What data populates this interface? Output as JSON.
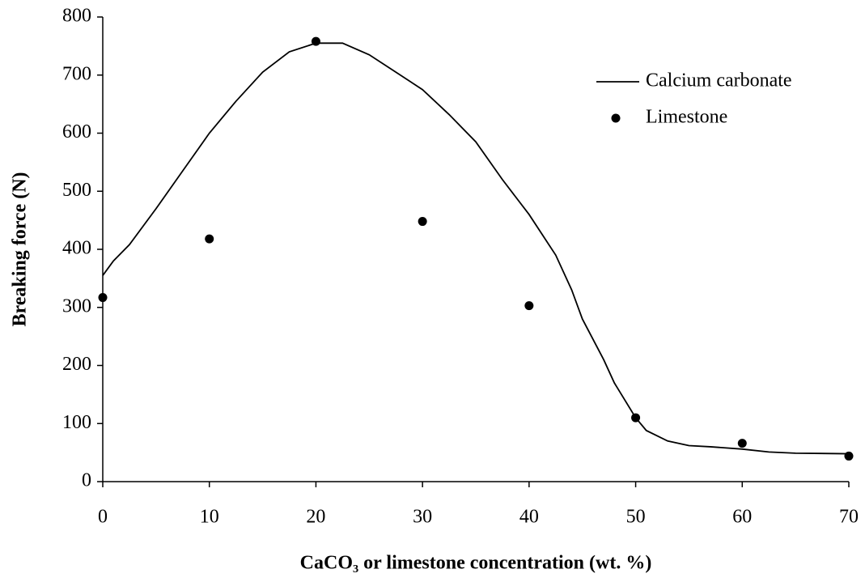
{
  "chart_data": {
    "type": "line",
    "x_label": "CaCO₃ or limestone concentration (wt. %)",
    "y_label": "Breaking force (N)",
    "xlim": [
      0,
      70
    ],
    "xticks": [
      0,
      10,
      20,
      30,
      40,
      50,
      60,
      70
    ],
    "ylim": [
      0,
      800
    ],
    "yticks": [
      0,
      100,
      200,
      300,
      400,
      500,
      600,
      700,
      800
    ],
    "legend": "upper right",
    "series": [
      {
        "name": "Calcium carbonate",
        "type": "line",
        "color": "#000000",
        "x": [
          0,
          1,
          2.5,
          5,
          7.5,
          10,
          12.5,
          15,
          17.5,
          20,
          22.5,
          25,
          27.5,
          30,
          32.5,
          35,
          37.5,
          40,
          42.5,
          44,
          45,
          47,
          48,
          50,
          51,
          53,
          55,
          57,
          60,
          62.5,
          65,
          70
        ],
        "values": [
          355,
          380,
          408,
          470,
          535,
          600,
          655,
          705,
          740,
          755,
          755,
          735,
          705,
          675,
          632,
          585,
          520,
          460,
          390,
          330,
          280,
          210,
          170,
          110,
          88,
          70,
          62,
          60,
          56,
          51,
          49,
          48
        ]
      },
      {
        "name": "Limestone",
        "type": "scatter",
        "color": "#000000",
        "x": [
          0,
          10,
          20,
          30,
          40,
          50,
          60,
          70
        ],
        "values": [
          317,
          418,
          758,
          448,
          303,
          110,
          66,
          44
        ]
      }
    ]
  }
}
